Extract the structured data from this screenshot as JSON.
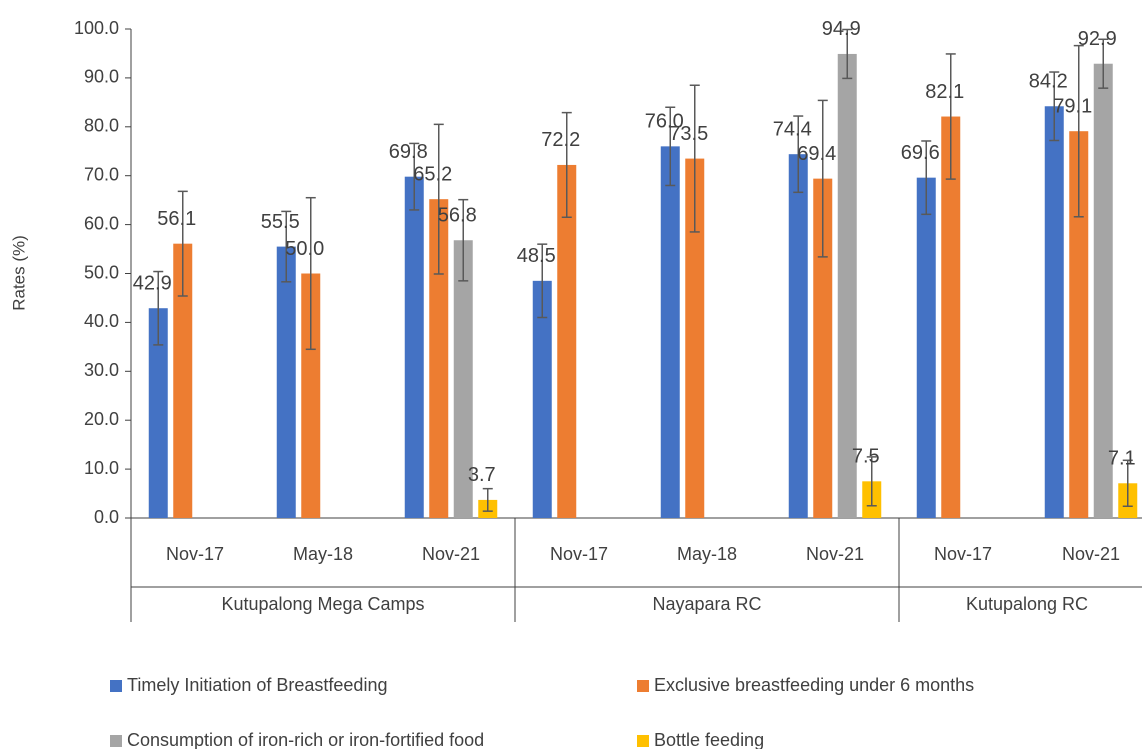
{
  "chart_data": {
    "type": "bar",
    "y_label": "Rates (%)",
    "categories": [
      "Nov-17",
      "May-18",
      "Nov-21",
      "Nov-17",
      "May-18",
      "Nov-21",
      "Nov-17",
      "Nov-21"
    ],
    "category_groups": [
      "Kutupalong Mega Camps",
      "Kutupalong Mega Camps",
      "Kutupalong Mega Camps",
      "Nayapara RC",
      "Nayapara RC",
      "Nayapara RC",
      "Kutupalong RC",
      "Kutupalong RC"
    ],
    "series": [
      {
        "name": "Timely Initiation of Breastfeeding",
        "color": "#4472c4",
        "values": [
          42.9,
          55.5,
          69.8,
          48.5,
          76.0,
          74.4,
          69.6,
          84.2
        ],
        "value_labels": [
          "42.9",
          "55.5",
          "69.8",
          "48.5",
          "76.0",
          "74.4",
          "69.6",
          "84.2"
        ],
        "errors": [
          7.5,
          7.2,
          6.8,
          7.5,
          8,
          7.8,
          7.5,
          7
        ]
      },
      {
        "name": "Exclusive breastfeeding under 6 months",
        "color": "#ed7d31",
        "values": [
          56.1,
          50.0,
          65.2,
          72.2,
          73.5,
          69.4,
          82.1,
          79.1
        ],
        "value_labels": [
          "56.1",
          "50.0",
          "65.2",
          "72.2",
          "73.5",
          "69.4",
          "82.1",
          "79.1"
        ],
        "errors": [
          10.7,
          15.5,
          15.3,
          10.7,
          15,
          16,
          12.8,
          17.5
        ]
      },
      {
        "name": "Consumption of iron-rich or iron-fortified food",
        "color": "#a5a5a5",
        "values": [
          null,
          null,
          56.8,
          null,
          null,
          94.9,
          null,
          92.9
        ],
        "value_labels": [
          null,
          null,
          "56.8",
          null,
          null,
          "94.9",
          null,
          "92.9"
        ],
        "errors": [
          null,
          null,
          8.3,
          null,
          null,
          5,
          null,
          5
        ]
      },
      {
        "name": "Bottle feeding",
        "color": "#ffc000",
        "values": [
          null,
          null,
          3.7,
          null,
          null,
          7.5,
          null,
          7.1
        ],
        "value_labels": [
          null,
          null,
          "3.7",
          null,
          null,
          "7.5",
          null,
          "7.1"
        ],
        "errors": [
          null,
          null,
          2.3,
          null,
          null,
          5,
          null,
          4.7
        ]
      }
    ],
    "ylim": [
      0,
      100
    ],
    "yticks": [
      {
        "value": 0,
        "label": "0.0"
      },
      {
        "value": 10,
        "label": "10.0"
      },
      {
        "value": 20,
        "label": "20.0"
      },
      {
        "value": 30,
        "label": "30.0"
      },
      {
        "value": 40,
        "label": "40.0"
      },
      {
        "value": 50,
        "label": "50.0"
      },
      {
        "value": 60,
        "label": "60.0"
      },
      {
        "value": 70,
        "label": "70.0"
      },
      {
        "value": 80,
        "label": "80.0"
      },
      {
        "value": 90,
        "label": "90.0"
      },
      {
        "value": 100,
        "label": "100.0"
      }
    ],
    "grid": false,
    "legend": "bottom"
  }
}
